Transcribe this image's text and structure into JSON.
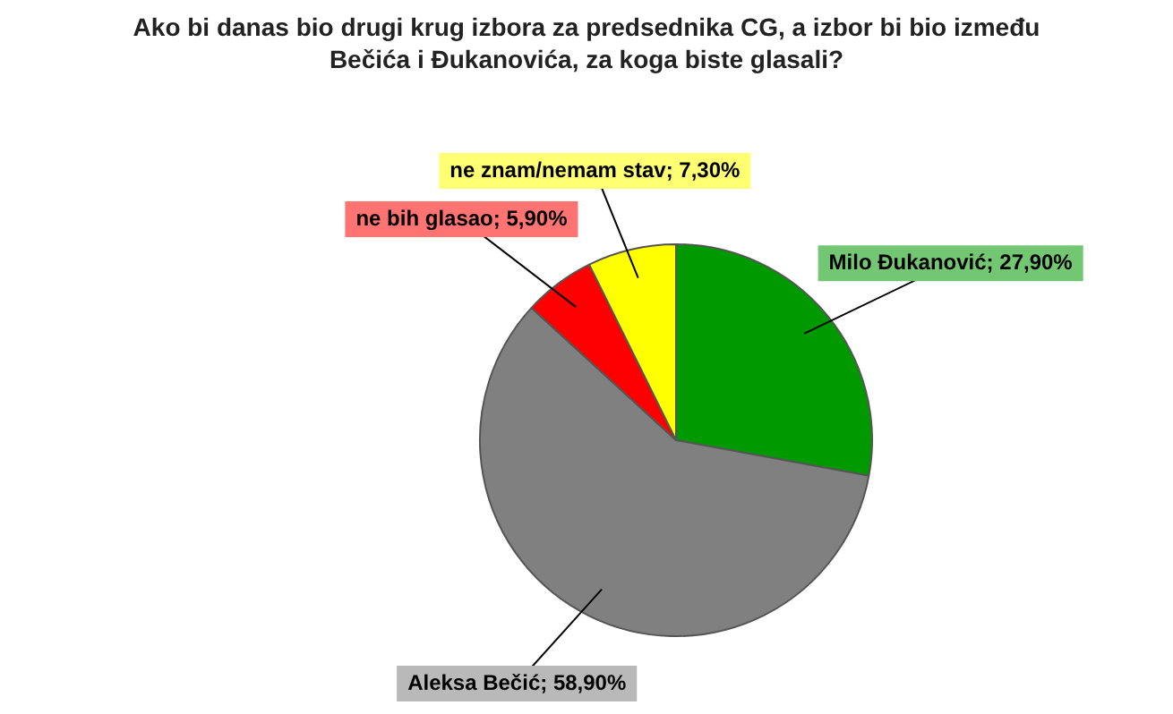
{
  "chart_data": {
    "type": "pie",
    "title": "Ako bi danas bio drugi krug izbora za predsednika CG, a izbor bi bio između Bečića i Đukanovića, za koga biste glasali?",
    "categories": [
      "Milo Đukanović",
      "Aleksa Bečić",
      "ne bih glasao",
      "ne znam/nemam stav"
    ],
    "values": [
      27.9,
      58.9,
      5.9,
      7.3
    ],
    "colors": [
      "#009900",
      "#808080",
      "#ff0000",
      "#ffff00"
    ],
    "value_labels": [
      "27,90%",
      "58,90%",
      "5,90%",
      "7,30%"
    ],
    "legend": false
  }
}
